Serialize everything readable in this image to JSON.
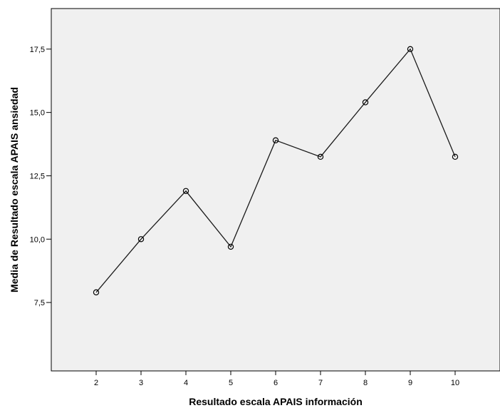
{
  "chart_data": {
    "type": "line",
    "title": "",
    "xlabel": "Resultado escala APAIS información",
    "ylabel": "Media de Resultado escala APAIS ansiedad",
    "x": [
      2,
      3,
      4,
      5,
      6,
      7,
      8,
      9,
      10
    ],
    "series": [
      {
        "values": [
          7.9,
          10.0,
          11.9,
          9.7,
          13.9,
          13.25,
          15.4,
          17.5,
          13.25
        ],
        "marker": "open-circle",
        "color": "#000000"
      }
    ],
    "xlim": [
      1,
      11
    ],
    "ylim": [
      4.8,
      19.1
    ],
    "xticks": [
      2,
      3,
      4,
      5,
      6,
      7,
      8,
      9,
      10
    ],
    "xtick_labels": [
      "2",
      "3",
      "4",
      "5",
      "6",
      "7",
      "8",
      "9",
      "10"
    ],
    "yticks": [
      7.5,
      10.0,
      12.5,
      15.0,
      17.5
    ],
    "ytick_labels": [
      "7,5",
      "10,0",
      "12,5",
      "15,0",
      "17,5"
    ],
    "grid": false,
    "legend": "none",
    "plot_background": "#f0f0f0"
  }
}
